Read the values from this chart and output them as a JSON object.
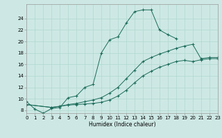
{
  "xlabel": "Humidex (Indice chaleur)",
  "ylabel": "",
  "bg_color": "#cde8e4",
  "line_color": "#1a6b5a",
  "grid_color": "#b0d8d0",
  "x_values": [
    0,
    1,
    2,
    3,
    4,
    5,
    6,
    7,
    8,
    9,
    10,
    11,
    12,
    13,
    14,
    15,
    16,
    17,
    18,
    19,
    20,
    21,
    22,
    23
  ],
  "line1": [
    9.5,
    8.2,
    7.5,
    8.3,
    8.5,
    10.2,
    10.5,
    12.0,
    12.5,
    18.0,
    20.3,
    20.8,
    23.2,
    25.2,
    25.5,
    25.5,
    22.0,
    21.2,
    20.5,
    null,
    null,
    null,
    null,
    null
  ],
  "line2": [
    9.0,
    null,
    null,
    8.5,
    8.7,
    9.0,
    9.2,
    9.5,
    9.8,
    10.2,
    11.0,
    12.0,
    13.5,
    15.0,
    16.5,
    17.2,
    17.8,
    18.3,
    18.8,
    19.2,
    19.5,
    17.0,
    17.2,
    17.2
  ],
  "line3": [
    9.0,
    null,
    null,
    8.5,
    8.7,
    8.9,
    9.0,
    9.1,
    9.2,
    9.4,
    9.8,
    10.5,
    11.5,
    12.8,
    14.0,
    14.8,
    15.5,
    16.0,
    16.5,
    16.7,
    16.5,
    16.8,
    17.0,
    17.0
  ],
  "ylim": [
    7.5,
    26.5
  ],
  "xlim": [
    0,
    23
  ],
  "yticks": [
    8,
    10,
    12,
    14,
    16,
    18,
    20,
    22,
    24
  ],
  "xticks": [
    0,
    1,
    2,
    3,
    4,
    5,
    6,
    7,
    8,
    9,
    10,
    11,
    12,
    13,
    14,
    15,
    16,
    17,
    18,
    19,
    20,
    21,
    22,
    23
  ],
  "xtick_labels": [
    "0",
    "1",
    "2",
    "3",
    "4",
    "5",
    "6",
    "7",
    "8",
    "9",
    "10",
    "11",
    "12",
    "13",
    "14",
    "15",
    "16",
    "17",
    "18",
    "19",
    "20",
    "21",
    "22",
    "23"
  ]
}
